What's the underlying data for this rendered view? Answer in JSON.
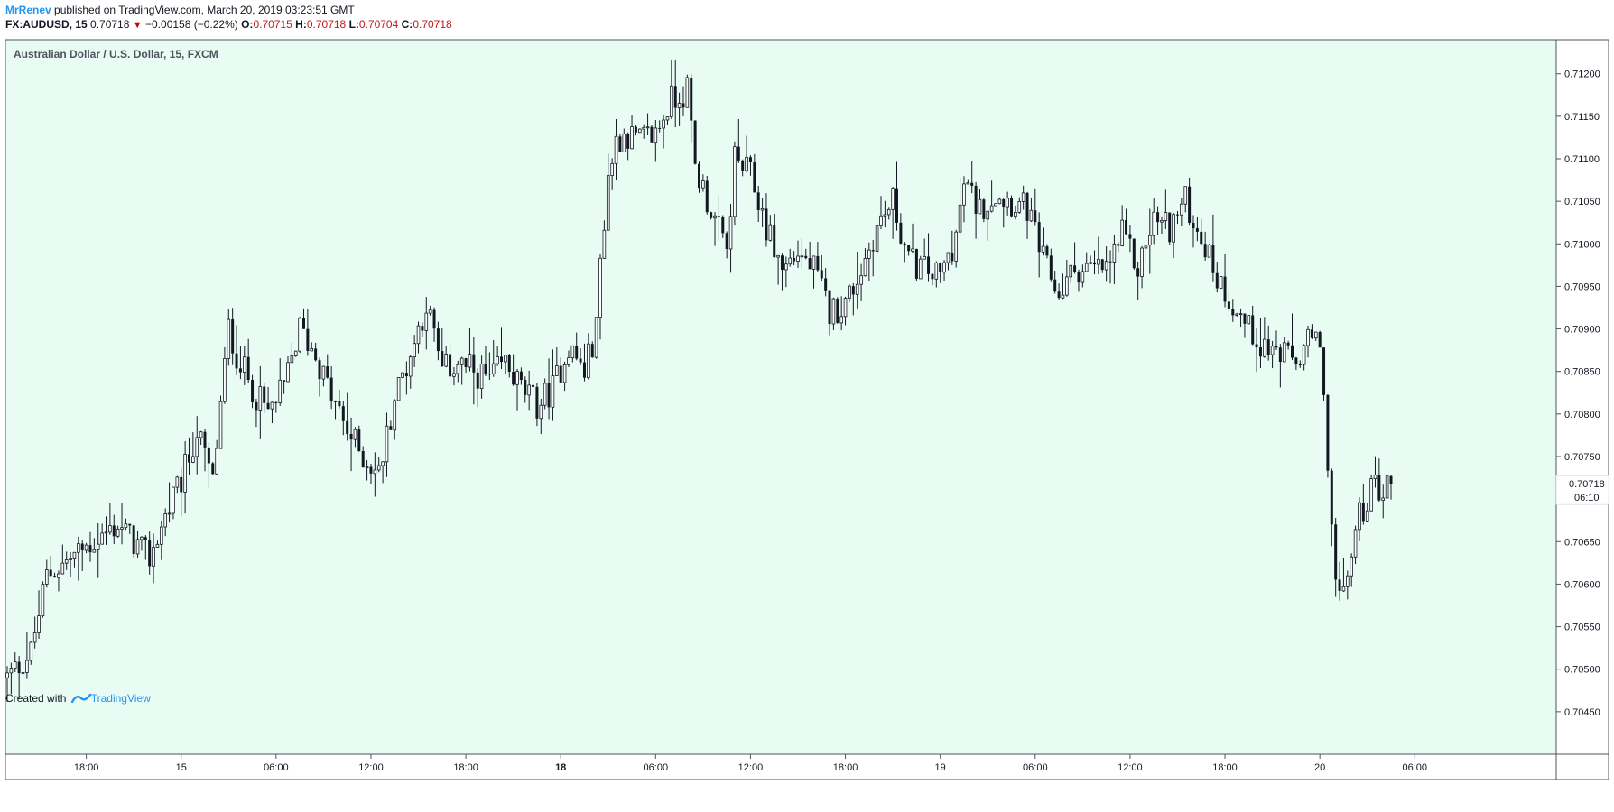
{
  "header": {
    "user": "MrRenev",
    "published_text": "published on TradingView.com, March 20, 2019 03:23:51 GMT",
    "symbol": "FX:AUDUSD, 15",
    "last": "0.70718",
    "change": "−0.00158 (−0.22%)",
    "open_label": "O:",
    "open": "0.70715",
    "high_label": "H:",
    "high": "0.70718",
    "low_label": "L:",
    "low": "0.70704",
    "close_label": "C:",
    "close": "0.70718"
  },
  "footer": {
    "created_with": "Created with",
    "brand": "TradingView"
  },
  "colors": {
    "background": "#e8fcf4",
    "border": "#50535e",
    "candle": "#131722",
    "last_price_badge": "#ffffff",
    "price_line": "#e04040"
  },
  "chart_data": {
    "type": "candlestick",
    "title": "Australian Dollar / U.S. Dollar, 15, FXCM",
    "ylim": [
      0.704,
      0.7124
    ],
    "y_ticks": [
      "0.71200",
      "0.71150",
      "0.71100",
      "0.71050",
      "0.71000",
      "0.70950",
      "0.70900",
      "0.70850",
      "0.70800",
      "0.70750",
      "0.70700",
      "0.70650",
      "0.70600",
      "0.70550",
      "0.70500",
      "0.70450"
    ],
    "x_ticks": [
      {
        "label": "18:00",
        "bar": 20,
        "bold": false
      },
      {
        "label": "15",
        "bar": 44,
        "bold": false
      },
      {
        "label": "06:00",
        "bar": 68,
        "bold": false
      },
      {
        "label": "12:00",
        "bar": 92,
        "bold": false
      },
      {
        "label": "18:00",
        "bar": 116,
        "bold": false
      },
      {
        "label": "18",
        "bar": 140,
        "bold": true
      },
      {
        "label": "06:00",
        "bar": 164,
        "bold": false
      },
      {
        "label": "12:00",
        "bar": 188,
        "bold": false
      },
      {
        "label": "18:00",
        "bar": 212,
        "bold": false
      },
      {
        "label": "19",
        "bar": 236,
        "bold": false
      },
      {
        "label": "06:00",
        "bar": 260,
        "bold": false
      },
      {
        "label": "12:00",
        "bar": 284,
        "bold": false
      },
      {
        "label": "18:00",
        "bar": 308,
        "bold": false
      },
      {
        "label": "20",
        "bar": 332,
        "bold": false
      },
      {
        "label": "06:00",
        "bar": 356,
        "bold": false
      }
    ],
    "last_price_label": "0.70718",
    "countdown_label": "06:10",
    "last_price": 0.70718,
    "anchors": [
      [
        0,
        0.7049
      ],
      [
        6,
        0.7052
      ],
      [
        10,
        0.7061
      ],
      [
        16,
        0.7063
      ],
      [
        22,
        0.7065
      ],
      [
        28,
        0.7067
      ],
      [
        32,
        0.7065
      ],
      [
        36,
        0.7063
      ],
      [
        40,
        0.7068
      ],
      [
        44,
        0.7072
      ],
      [
        48,
        0.7078
      ],
      [
        52,
        0.7072
      ],
      [
        56,
        0.709
      ],
      [
        58,
        0.7087
      ],
      [
        62,
        0.7083
      ],
      [
        66,
        0.708
      ],
      [
        70,
        0.7083
      ],
      [
        74,
        0.709
      ],
      [
        78,
        0.7087
      ],
      [
        82,
        0.7082
      ],
      [
        86,
        0.7078
      ],
      [
        90,
        0.7075
      ],
      [
        94,
        0.7073
      ],
      [
        98,
        0.7082
      ],
      [
        102,
        0.7087
      ],
      [
        106,
        0.7093
      ],
      [
        110,
        0.7085
      ],
      [
        114,
        0.7086
      ],
      [
        118,
        0.7085
      ],
      [
        122,
        0.7084
      ],
      [
        126,
        0.7086
      ],
      [
        130,
        0.7083
      ],
      [
        134,
        0.7081
      ],
      [
        138,
        0.7083
      ],
      [
        142,
        0.7088
      ],
      [
        146,
        0.7085
      ],
      [
        149,
        0.709
      ],
      [
        150,
        0.7098
      ],
      [
        152,
        0.7108
      ],
      [
        154,
        0.7112
      ],
      [
        156,
        0.7113
      ],
      [
        160,
        0.7112
      ],
      [
        164,
        0.7113
      ],
      [
        168,
        0.7117
      ],
      [
        172,
        0.7118
      ],
      [
        174,
        0.7109
      ],
      [
        178,
        0.7104
      ],
      [
        182,
        0.7099
      ],
      [
        184,
        0.711
      ],
      [
        188,
        0.7108
      ],
      [
        192,
        0.7102
      ],
      [
        196,
        0.7097
      ],
      [
        200,
        0.7099
      ],
      [
        204,
        0.7097
      ],
      [
        208,
        0.7092
      ],
      [
        212,
        0.7093
      ],
      [
        216,
        0.7097
      ],
      [
        220,
        0.7102
      ],
      [
        224,
        0.7105
      ],
      [
        228,
        0.7098
      ],
      [
        232,
        0.7097
      ],
      [
        236,
        0.7096
      ],
      [
        240,
        0.7101
      ],
      [
        242,
        0.7107
      ],
      [
        246,
        0.7104
      ],
      [
        250,
        0.7106
      ],
      [
        254,
        0.7105
      ],
      [
        258,
        0.7104
      ],
      [
        262,
        0.7098
      ],
      [
        266,
        0.7094
      ],
      [
        270,
        0.7097
      ],
      [
        274,
        0.7097
      ],
      [
        278,
        0.7097
      ],
      [
        282,
        0.7101
      ],
      [
        286,
        0.7097
      ],
      [
        290,
        0.7103
      ],
      [
        294,
        0.7102
      ],
      [
        298,
        0.7105
      ],
      [
        302,
        0.7101
      ],
      [
        306,
        0.7096
      ],
      [
        310,
        0.7093
      ],
      [
        314,
        0.709
      ],
      [
        318,
        0.7088
      ],
      [
        322,
        0.7087
      ],
      [
        326,
        0.7086
      ],
      [
        330,
        0.7089
      ],
      [
        332,
        0.7087
      ],
      [
        334,
        0.7075
      ],
      [
        336,
        0.706
      ],
      [
        338,
        0.7058
      ],
      [
        340,
        0.7064
      ],
      [
        342,
        0.7068
      ],
      [
        344,
        0.707
      ],
      [
        346,
        0.7072
      ],
      [
        348,
        0.7071
      ],
      [
        350,
        0.70718
      ]
    ]
  }
}
